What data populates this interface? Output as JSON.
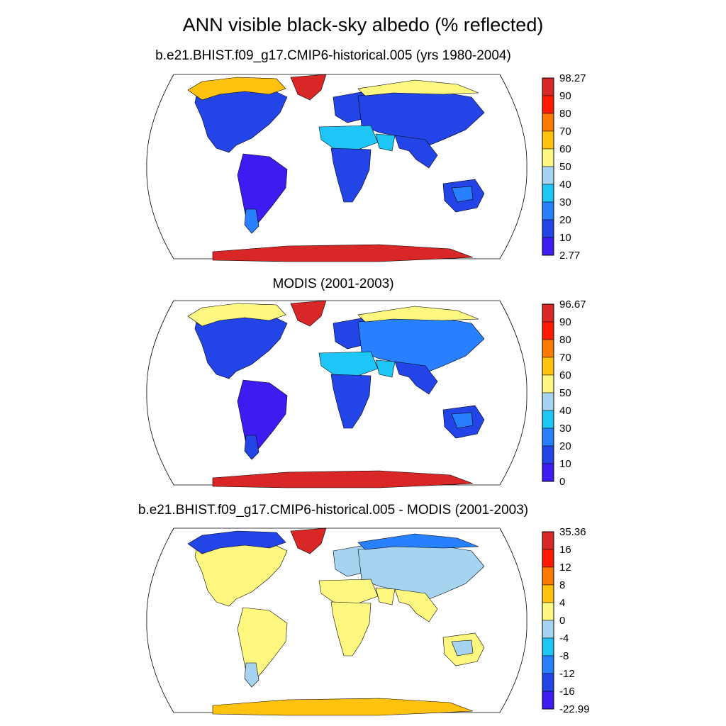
{
  "title": "ANN visible black-sky albedo (% reflected)",
  "palettes": {
    "abs": [
      "#3c1cf0",
      "#2345e8",
      "#2880ff",
      "#1ec6f7",
      "#a6d3f0",
      "#fff880",
      "#ffc20e",
      "#ff7a00",
      "#ff1a00",
      "#d92626"
    ],
    "diff": [
      "#3c1cf0",
      "#2345e8",
      "#2880ff",
      "#1ec6f7",
      "#a6d3f0",
      "#fff880",
      "#ffc20e",
      "#ff7a00",
      "#ff1a00",
      "#d92626"
    ]
  },
  "panels": [
    {
      "id": "model",
      "title": "b.e21.BHIST.f09_g17.CMIP6-historical.005 (yrs 1980-2004)",
      "palette": "abs",
      "colorbar_labels": [
        "98.27",
        "90",
        "80",
        "70",
        "60",
        "50",
        "40",
        "30",
        "20",
        "10",
        "2.77"
      ],
      "regions": {
        "north_america": 1,
        "alaska_canada_north": 6,
        "greenland": 9,
        "south_america": 0,
        "andes_south": 2,
        "europe": 1,
        "asia": 1,
        "siberia_arctic": 5,
        "sahara": 3,
        "arabia": 3,
        "africa_south": 1,
        "india_se_asia": 1,
        "australia": 1,
        "australia_interior": 2,
        "antarctica": 9
      }
    },
    {
      "id": "obs",
      "title": "MODIS (2001-2003)",
      "palette": "abs",
      "colorbar_labels": [
        "96.67",
        "90",
        "80",
        "70",
        "60",
        "50",
        "40",
        "30",
        "20",
        "10",
        "0"
      ],
      "regions": {
        "north_america": 1,
        "alaska_canada_north": 5,
        "greenland": 9,
        "south_america": 0,
        "andes_south": 1,
        "europe": 1,
        "asia": 2,
        "siberia_arctic": 5,
        "sahara": 3,
        "arabia": 3,
        "africa_south": 1,
        "india_se_asia": 1,
        "australia": 1,
        "australia_interior": 2,
        "antarctica": 9
      }
    },
    {
      "id": "diff",
      "title": "b.e21.BHIST.f09_g17.CMIP6-historical.005 - MODIS (2001-2003)",
      "palette": "diff",
      "colorbar_labels": [
        "35.36",
        "16",
        "12",
        "8",
        "4",
        "0",
        "-4",
        "-8",
        "-12",
        "-16",
        "-22.99"
      ],
      "regions": {
        "north_america": 5,
        "alaska_canada_north": 1,
        "greenland": 9,
        "south_america": 5,
        "andes_south": 4,
        "europe": 4,
        "asia": 4,
        "siberia_arctic": 2,
        "sahara": 5,
        "arabia": 5,
        "africa_south": 5,
        "india_se_asia": 5,
        "australia": 5,
        "australia_interior": 4,
        "antarctica": 6
      }
    }
  ]
}
